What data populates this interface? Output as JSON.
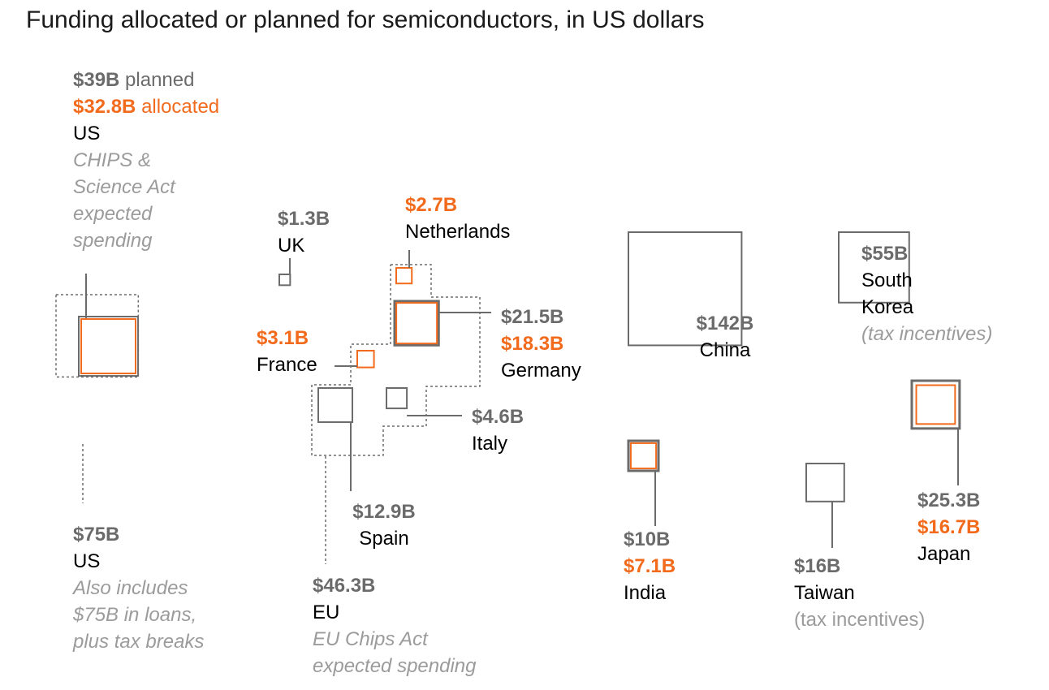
{
  "title": "Funding allocated or planned for semiconductors, in US dollars",
  "colors": {
    "planned": "#6b6b6b",
    "allocated": "#f26b1d",
    "note": "#9b9b9b"
  },
  "chart_data": {
    "type": "proportional-square",
    "units": "billion USD",
    "items": [
      {
        "id": "us-chips",
        "country": "US",
        "planned": 39,
        "allocated": 32.8,
        "planned_label": "$39B",
        "planned_word": "planned",
        "allocated_label": "$32.8B",
        "allocated_word": "allocated",
        "note": [
          "CHIPS &",
          "Science Act",
          "expected",
          "spending"
        ]
      },
      {
        "id": "us-total",
        "country": "US",
        "value": 75,
        "label": "$75B",
        "note": [
          "Also includes",
          "$75B in loans,",
          "plus tax breaks"
        ]
      },
      {
        "id": "uk",
        "country": "UK",
        "value": 1.3,
        "label": "$1.3B"
      },
      {
        "id": "netherlands",
        "country": "Netherlands",
        "allocated": 2.7,
        "allocated_label": "$2.7B"
      },
      {
        "id": "france",
        "country": "France",
        "allocated": 3.1,
        "allocated_label": "$3.1B"
      },
      {
        "id": "germany",
        "country": "Germany",
        "planned": 21.5,
        "allocated": 18.3,
        "planned_label": "$21.5B",
        "allocated_label": "$18.3B"
      },
      {
        "id": "italy",
        "country": "Italy",
        "value": 4.6,
        "label": "$4.6B"
      },
      {
        "id": "spain",
        "country": "Spain",
        "value": 12.9,
        "label": "$12.9B"
      },
      {
        "id": "eu",
        "country": "EU",
        "value": 46.3,
        "label": "$46.3B",
        "note": [
          "EU Chips Act",
          "expected spending"
        ]
      },
      {
        "id": "china",
        "country": "China",
        "value": 142,
        "label": "$142B"
      },
      {
        "id": "south-korea",
        "country": [
          "South",
          "Korea"
        ],
        "value": 55,
        "label": "$55B",
        "note": [
          "(tax incentives)"
        ]
      },
      {
        "id": "india",
        "country": "India",
        "planned": 10,
        "allocated": 7.1,
        "planned_label": "$10B",
        "allocated_label": "$7.1B"
      },
      {
        "id": "taiwan",
        "country": "Taiwan",
        "value": 16,
        "label": "$16B",
        "note": [
          "(tax incentives)"
        ]
      },
      {
        "id": "japan",
        "country": "Japan",
        "planned": 25.3,
        "allocated": 16.7,
        "planned_label": "$25.3B",
        "allocated_label": "$16.7B"
      }
    ]
  }
}
